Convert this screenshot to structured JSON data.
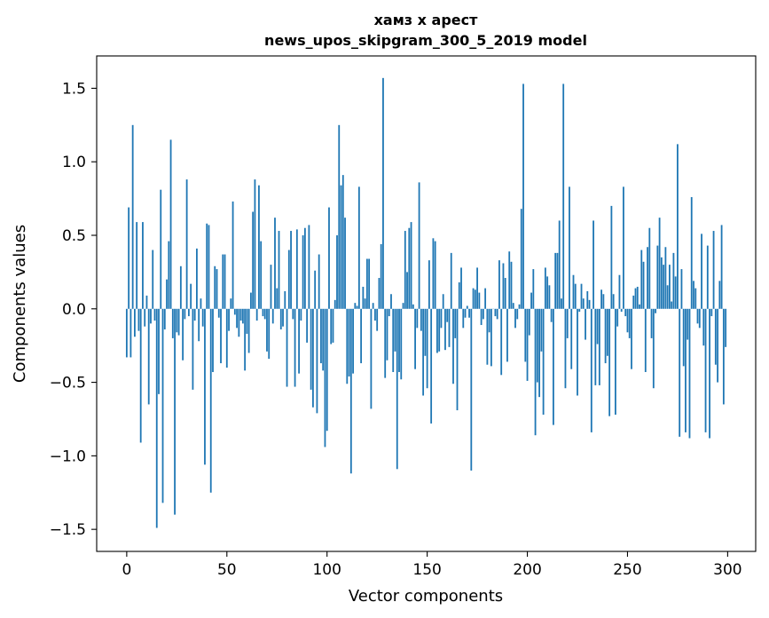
{
  "chart_data": {
    "type": "bar",
    "title_lines": [
      "хамз x арест",
      "news_upos_skipgram_300_5_2019 model"
    ],
    "xlabel": "Vector components",
    "ylabel": "Components values",
    "xlim": [
      -15,
      314
    ],
    "ylim": [
      -1.65,
      1.72
    ],
    "xticks": [
      0,
      50,
      100,
      150,
      200,
      250,
      300
    ],
    "yticks": [
      -1.5,
      -1.0,
      -0.5,
      0.0,
      0.5,
      1.0,
      1.5
    ],
    "ytick_labels": [
      "−1.5",
      "−1.0",
      "−0.5",
      "0.0",
      "0.5",
      "1.0",
      "1.5"
    ],
    "bar_color": "#1f77b4",
    "values": [
      -0.33,
      0.69,
      -0.33,
      1.25,
      -0.19,
      0.59,
      -0.15,
      -0.91,
      0.59,
      -0.12,
      0.09,
      -0.65,
      -0.1,
      0.4,
      -0.08,
      -1.49,
      -0.58,
      0.81,
      -1.32,
      -0.14,
      0.2,
      0.46,
      1.15,
      -0.2,
      -1.4,
      -0.16,
      -0.18,
      0.29,
      -0.35,
      -0.07,
      0.88,
      -0.05,
      0.17,
      -0.55,
      -0.08,
      0.41,
      -0.22,
      0.07,
      -0.12,
      -1.06,
      0.58,
      0.57,
      -1.25,
      -0.43,
      0.29,
      0.27,
      -0.06,
      -0.37,
      0.37,
      0.37,
      -0.4,
      -0.15,
      0.07,
      0.73,
      -0.04,
      -0.13,
      -0.19,
      -0.08,
      -0.1,
      -0.42,
      -0.17,
      -0.3,
      0.11,
      0.66,
      0.88,
      -0.08,
      0.84,
      0.46,
      -0.05,
      -0.07,
      -0.29,
      -0.34,
      0.3,
      -0.1,
      0.62,
      0.14,
      0.53,
      -0.14,
      -0.12,
      0.12,
      -0.53,
      0.4,
      0.53,
      -0.07,
      -0.53,
      0.54,
      -0.44,
      -0.08,
      0.5,
      0.55,
      -0.23,
      0.57,
      -0.55,
      -0.67,
      0.26,
      -0.71,
      0.37,
      -0.37,
      -0.42,
      -0.94,
      -0.83,
      0.69,
      -0.24,
      -0.23,
      0.06,
      0.5,
      1.25,
      0.84,
      0.91,
      0.62,
      -0.51,
      -0.46,
      -1.12,
      -0.44,
      0.04,
      0.02,
      0.83,
      -0.37,
      0.15,
      0.07,
      0.34,
      0.34,
      -0.68,
      0.04,
      -0.08,
      -0.15,
      0.21,
      0.44,
      1.57,
      -0.47,
      -0.35,
      -0.05,
      0.1,
      -0.43,
      -0.29,
      -1.09,
      -0.43,
      -0.48,
      0.04,
      0.53,
      0.25,
      0.55,
      0.59,
      0.03,
      -0.41,
      -0.13,
      0.86,
      -0.15,
      -0.59,
      -0.32,
      -0.54,
      0.33,
      -0.78,
      0.48,
      0.46,
      -0.3,
      -0.29,
      -0.13,
      0.1,
      -0.28,
      -0.09,
      -0.26,
      0.38,
      -0.51,
      -0.2,
      -0.69,
      0.18,
      0.28,
      -0.13,
      -0.06,
      0.02,
      -0.06,
      -1.1,
      0.14,
      0.13,
      0.28,
      0.11,
      -0.11,
      -0.07,
      0.14,
      -0.38,
      -0.16,
      -0.39,
      0.0,
      -0.05,
      -0.07,
      0.33,
      -0.45,
      0.31,
      0.21,
      -0.36,
      0.39,
      0.32,
      0.04,
      -0.13,
      -0.07,
      0.03,
      0.68,
      1.53,
      -0.36,
      -0.49,
      -0.18,
      0.11,
      0.27,
      -0.86,
      -0.5,
      -0.6,
      -0.29,
      -0.72,
      0.28,
      0.22,
      0.16,
      -0.09,
      -0.79,
      0.38,
      0.38,
      0.6,
      0.07,
      1.53,
      -0.54,
      -0.2,
      0.83,
      -0.41,
      0.23,
      0.17,
      -0.59,
      -0.02,
      0.17,
      0.07,
      -0.21,
      0.12,
      0.06,
      -0.84,
      0.6,
      -0.52,
      -0.24,
      -0.52,
      0.13,
      0.1,
      -0.37,
      -0.32,
      -0.73,
      0.7,
      0.1,
      -0.72,
      -0.12,
      0.23,
      -0.02,
      0.83,
      -0.05,
      -0.16,
      -0.2,
      -0.41,
      0.09,
      0.14,
      0.15,
      0.03,
      0.4,
      0.32,
      -0.43,
      0.42,
      0.55,
      -0.2,
      -0.54,
      -0.03,
      0.43,
      0.62,
      0.35,
      0.3,
      0.42,
      0.16,
      0.3,
      0.05,
      0.38,
      0.22,
      1.12,
      -0.87,
      0.27,
      -0.39,
      -0.84,
      -0.21,
      -0.88,
      0.76,
      0.19,
      0.14,
      -0.1,
      -0.13,
      0.51,
      -0.25,
      -0.84,
      0.43,
      -0.88,
      -0.05,
      0.53,
      -0.38,
      -0.5,
      0.19,
      0.57,
      -0.65,
      -0.26
    ]
  }
}
